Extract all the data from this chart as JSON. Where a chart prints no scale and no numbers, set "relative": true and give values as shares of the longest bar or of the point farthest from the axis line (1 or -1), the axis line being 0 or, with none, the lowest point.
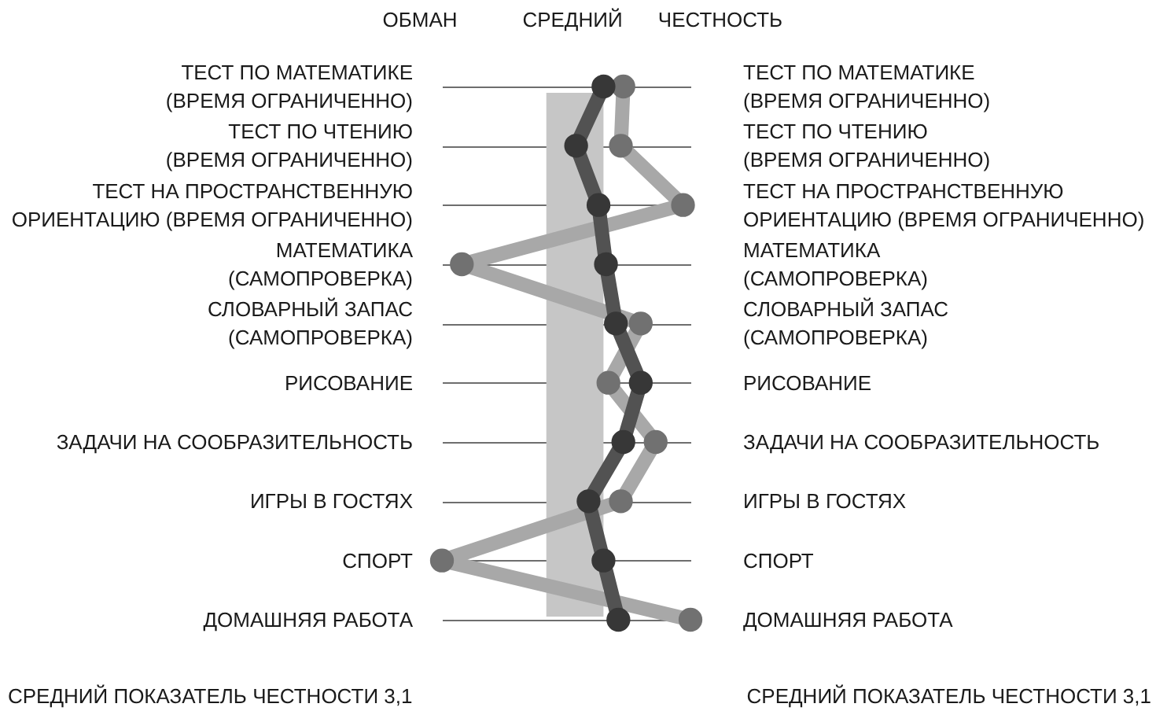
{
  "chart_data": {
    "type": "line",
    "orientation": "horizontal",
    "relative": true,
    "categories": [
      "ТЕСТ ПО МАТЕМАТИКЕ\n(ВРЕМЯ ОГРАНИЧЕННО)",
      "ТЕСТ ПО ЧТЕНИЮ\n(ВРЕМЯ ОГРАНИЧЕННО)",
      "ТЕСТ НА ПРОСТРАНСТВЕННУЮ\nОРИЕНТАЦИЮ (ВРЕМЯ ОГРАНИЧЕННО)",
      "МАТЕМАТИКА\n(САМОПРОВЕРКА)",
      "СЛОВАРНЫЙ ЗАПАС\n(САМОПРОВЕРКА)",
      "РИСОВАНИЕ",
      "ЗАДАЧИ НА СООБРАЗИТЕЛЬНОСТЬ",
      "ИГРЫ В ГОСТЯХ",
      "СПОРТ",
      "ДОМАШНЯЯ РАБОТА"
    ],
    "series": [
      {
        "color": "#a8a8a8",
        "values": [
          0.73,
          0.72,
          0.97,
          0.08,
          0.8,
          0.67,
          0.86,
          0.72,
          0,
          1
        ]
      },
      {
        "color": "#525252",
        "values": [
          0.65,
          0.54,
          0.63,
          0.66,
          0.7,
          0.8,
          0.73,
          0.59,
          0.65,
          0.71
        ]
      }
    ],
    "bands": [
      {
        "axis": "x",
        "from": 0.42,
        "to": 0.65,
        "color": "#c6c6c6"
      }
    ],
    "annotations": [
      "ОБМАН",
      "СРЕДНИЙ",
      "ЧЕСТНОСТЬ",
      "СРЕДНИЙ ПОКАЗАТЕЛЬ ЧЕСТНОСТИ 3,1",
      "СРЕДНИЙ ПОКАЗАТЕЛЬ ЧЕСТНОСТИ 3,1"
    ],
    "grid": "y",
    "marker": "circle",
    "line_style": "solid"
  }
}
